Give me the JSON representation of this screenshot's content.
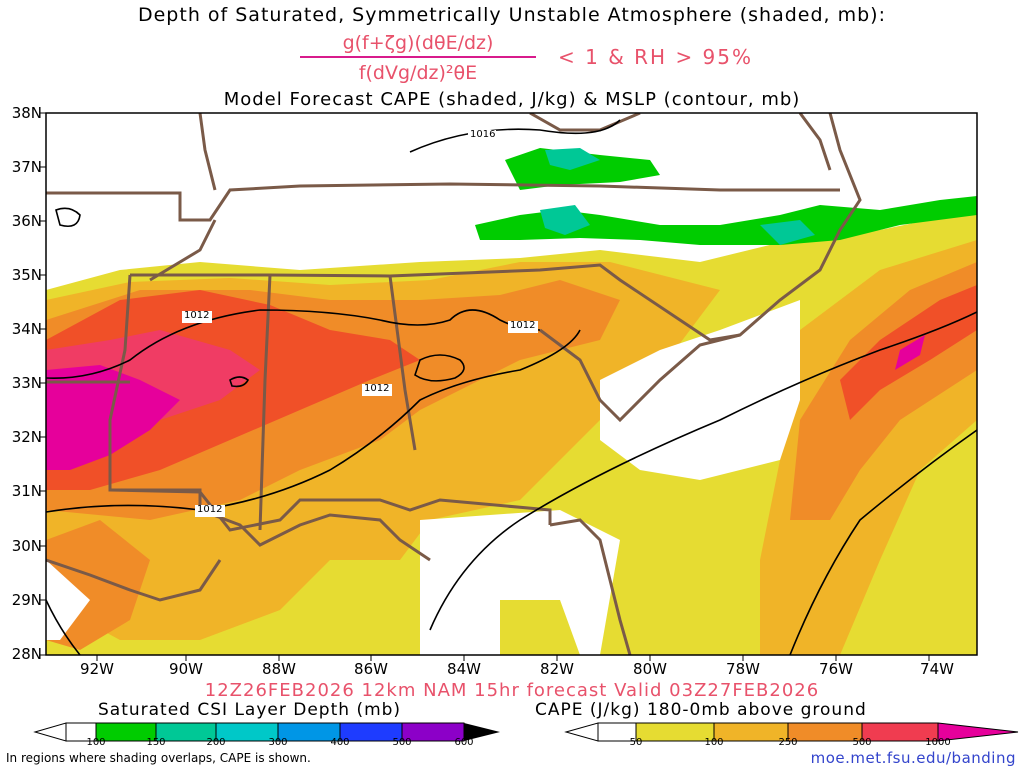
{
  "header": {
    "title_line1": "Depth of Saturated, Symmetrically Unstable Atmosphere (shaded, mb):",
    "fraction_numerator": "g(f+ζg)(dθE/dz)",
    "fraction_denominator": "f(dVg/dz)²θE",
    "condition": "< 1 & RH > 95%",
    "title_line3": "Model Forecast CAPE (shaded, J/kg) & MSLP (contour, mb)"
  },
  "axes": {
    "lat_labels": [
      "38N",
      "37N",
      "36N",
      "35N",
      "34N",
      "33N",
      "32N",
      "31N",
      "30N",
      "29N",
      "28N"
    ],
    "lon_labels": [
      "92W",
      "90W",
      "88W",
      "86W",
      "84W",
      "82W",
      "80W",
      "78W",
      "76W",
      "74W"
    ]
  },
  "contours": {
    "isobar_labels": [
      "1016",
      "1012",
      "1012",
      "1012",
      "1012"
    ]
  },
  "footer": {
    "valid_line": "12Z26FEB2026 12km NAM 15hr forecast Valid 03Z27FEB2026",
    "csi_label": "Saturated CSI Layer Depth (mb)",
    "cape_label": "CAPE (J/kg) 180-0mb above ground",
    "csi_ticks": [
      "100",
      "150",
      "200",
      "300",
      "400",
      "500",
      "600"
    ],
    "cape_ticks": [
      "50",
      "100",
      "250",
      "500",
      "1000"
    ],
    "note": "In regions where shading overlaps, CAPE is shown.",
    "url": "moe.met.fsu.edu/banding"
  },
  "colors": {
    "csi_scale": [
      "#ffffff",
      "#00cc00",
      "#00c896",
      "#00c8c8",
      "#0096e6",
      "#1e3cff",
      "#5000dc",
      "#8c00c8",
      "#000000"
    ],
    "cape_scale": [
      "#ffffff",
      "#e6dc32",
      "#f0b428",
      "#f08c28",
      "#f05028",
      "#f03c64",
      "#e6009b"
    ],
    "border_color": "#7a5a48",
    "contour_color": "#000000"
  }
}
